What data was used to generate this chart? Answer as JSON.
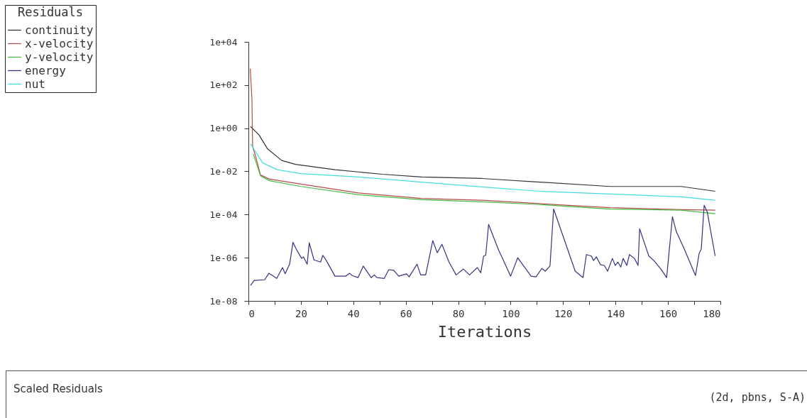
{
  "chart_data": {
    "type": "line",
    "xlabel": "Iterations",
    "legend_title": "Residuals",
    "legend": "top left",
    "log": "y",
    "grid": false,
    "xlim": [
      0,
      180
    ],
    "xticks": [
      0,
      {
        "value": 10,
        "label": null
      },
      20,
      {
        "value": 30,
        "label": null
      },
      40,
      {
        "value": 50,
        "label": null
      },
      60,
      {
        "value": 70,
        "label": null
      },
      80,
      {
        "value": 90,
        "label": null
      },
      100,
      {
        "value": 110,
        "label": null
      },
      120,
      {
        "value": 130,
        "label": null
      },
      140,
      {
        "value": 150,
        "label": null
      },
      160,
      {
        "value": 170,
        "label": null
      },
      180
    ],
    "ylim": [
      1e-08,
      10000
    ],
    "yticks": [
      {
        "value": 1e-08,
        "label": "1e-08"
      },
      {
        "value": 1e-06,
        "label": "1e-06"
      },
      {
        "value": 0.0001,
        "label": "1e-04"
      },
      {
        "value": 0.01,
        "label": "1e-02"
      },
      {
        "value": 1,
        "label": "1e+00"
      },
      {
        "value": 100,
        "label": "1e+02"
      },
      {
        "value": 10000,
        "label": "1e+04"
      }
    ],
    "annotations": [
      "Scaled Residuals",
      "(2d, pbns, S-A)"
    ],
    "series": [
      {
        "name": "continuity",
        "color": "#333333",
        "x": [
          0.8,
          4,
          7.3,
          12.7,
          18,
          33,
          51,
          66,
          89,
          111,
          138,
          165,
          178
        ],
        "values": [
          1.2,
          0.5,
          0.11,
          0.032,
          0.021,
          0.012,
          0.0074,
          0.0055,
          0.0047,
          0.0032,
          0.002,
          0.002,
          0.0012
        ]
      },
      {
        "name": "x-velocity",
        "color": "#b84a4a",
        "x": [
          0.7,
          1.35,
          1.6,
          2.7,
          4.6,
          8,
          20,
          42,
          66,
          89,
          111,
          138,
          165,
          178
        ],
        "values": [
          580,
          22,
          0.14,
          0.052,
          0.0069,
          0.0044,
          0.0026,
          0.001,
          0.00056,
          0.00046,
          0.00032,
          0.00021,
          0.00017,
          0.00016
        ]
      },
      {
        "name": "y-velocity",
        "color": "#44bb44",
        "x": [
          1.9,
          4.6,
          8,
          20,
          42,
          66,
          89,
          111,
          138,
          165,
          178
        ],
        "values": [
          0.063,
          0.0063,
          0.0037,
          0.002,
          0.00083,
          0.00049,
          0.00039,
          0.00029,
          0.00018,
          0.00016,
          0.00011
        ]
      },
      {
        "name": "energy",
        "color": "#333380",
        "x": [
          0.8,
          2.2,
          6.2,
          7.8,
          10.8,
          13,
          14,
          15.7,
          17,
          18.4,
          20.3,
          21,
          22.4,
          23.2,
          25,
          27.5,
          28.4,
          29.7,
          33,
          37,
          38.6,
          39.6,
          41.8,
          43.8,
          46.8,
          48,
          49,
          51.8,
          53.5,
          55.4,
          57.3,
          60.3,
          61.3,
          64.3,
          65.7,
          67.6,
          70.3,
          72,
          73.8,
          76.5,
          79.2,
          82,
          84.3,
          87.3,
          88.6,
          89.7,
          90.5,
          91.6,
          95.4,
          97.3,
          100,
          102.7,
          107.8,
          109.7,
          111.9,
          113.2,
          115,
          116.4,
          120,
          124.6,
          127.6,
          128.9,
          130.8,
          131.6,
          132.7,
          134.3,
          135.7,
          137,
          138.8,
          139.9,
          140.9,
          142,
          142.9,
          144.3,
          145.3,
          147.2,
          148.6,
          149.2,
          152.7,
          154.6,
          157.3,
          159.5,
          161.7,
          163.2,
          166,
          170.5,
          171.9,
          172.7,
          173.8,
          175,
          178
        ],
        "values": [
          5.2e-08,
          8.9e-08,
          9.5e-08,
          1.9e-07,
          1.1e-07,
          3.5e-07,
          1.8e-07,
          5e-07,
          5.2e-06,
          2.3e-06,
          9.3e-07,
          1.1e-06,
          5e-07,
          4.9e-06,
          7.9e-07,
          6.3e-07,
          1.3e-06,
          7.4e-07,
          1.4e-07,
          1.4e-07,
          1.9e-07,
          1.5e-07,
          1.2e-07,
          4.1e-07,
          1.2e-07,
          1.6e-07,
          1.2e-07,
          1.1e-07,
          2.8e-07,
          2.6e-07,
          1.4e-07,
          1.8e-07,
          1.3e-07,
          5e-07,
          1.6e-07,
          1.6e-07,
          6.2e-06,
          1.7e-06,
          4.2e-06,
          6.3e-07,
          1.6e-07,
          3e-07,
          1.6e-07,
          3.5e-07,
          2e-07,
          1.2e-06,
          1.3e-06,
          3.5e-05,
          2.3e-06,
          7.4e-07,
          1.4e-07,
          1e-06,
          1.4e-07,
          1.3e-07,
          3.2e-07,
          2.4e-07,
          4.1e-07,
          0.00018,
          1e-05,
          2.4e-07,
          1.2e-07,
          1.4e-06,
          1.2e-06,
          7.4e-07,
          1.1e-06,
          4.7e-07,
          4.4e-07,
          2.4e-07,
          9.3e-07,
          4.4e-07,
          6.3e-07,
          3.7e-07,
          9.3e-07,
          4.4e-07,
          1.4e-06,
          9.3e-07,
          4.4e-07,
          2.2e-05,
          1.2e-06,
          7.4e-07,
          3e-07,
          1.2e-07,
          7.9e-05,
          1.6e-05,
          2.9e-06,
          1.5e-07,
          1.6e-06,
          2.5e-06,
          0.00027,
          0.00013,
          1.2e-06
        ]
      },
      {
        "name": "nut",
        "color": "#44dddd",
        "x": [
          0.8,
          5.4,
          11,
          20,
          42,
          66,
          89,
          111,
          138,
          165,
          178
        ],
        "values": [
          0.19,
          0.025,
          0.012,
          0.0079,
          0.0055,
          0.0032,
          0.0019,
          0.0012,
          0.00089,
          0.00066,
          0.00046
        ]
      }
    ]
  }
}
